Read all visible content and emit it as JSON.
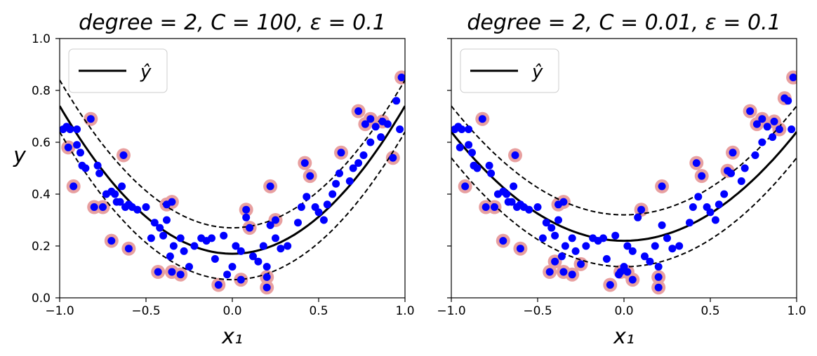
{
  "colors": {
    "points": "#0000ff",
    "support_vectors": "#e8a0a0",
    "prediction_line": "#000000",
    "margin_lines": "#000000",
    "background": "#ffffff"
  },
  "chart_data": [
    {
      "type": "scatter",
      "title": "degree = 2, C = 100, ε = 0.1",
      "xlabel": "x₁",
      "ylabel": "y",
      "xlim": [
        -1.0,
        1.0
      ],
      "ylim": [
        0.0,
        1.0
      ],
      "xticks": [
        "−1.0",
        "−0.5",
        "0.0",
        "0.5",
        "1.0"
      ],
      "yticks": [
        "0.0",
        "0.2",
        "0.4",
        "0.6",
        "0.8",
        "1.0"
      ],
      "legend": {
        "entries": [
          "ŷ"
        ],
        "placement": "upper-left"
      },
      "grid": false,
      "model_curve": {
        "a": 0.57,
        "b": 0.0,
        "c": 0.17,
        "epsilon": 0.1
      },
      "support_vectors": [
        [
          -0.95,
          0.58
        ],
        [
          -0.92,
          0.43
        ],
        [
          -0.8,
          0.35
        ],
        [
          -0.75,
          0.35
        ],
        [
          -0.82,
          0.69
        ],
        [
          -0.7,
          0.22
        ],
        [
          -0.63,
          0.55
        ],
        [
          -0.6,
          0.19
        ],
        [
          -0.43,
          0.1
        ],
        [
          -0.38,
          0.36
        ],
        [
          -0.35,
          0.37
        ],
        [
          -0.35,
          0.1
        ],
        [
          -0.3,
          0.09
        ],
        [
          -0.08,
          0.05
        ],
        [
          0.05,
          0.07
        ],
        [
          0.08,
          0.34
        ],
        [
          0.1,
          0.27
        ],
        [
          0.2,
          0.08
        ],
        [
          0.22,
          0.43
        ],
        [
          0.2,
          0.04
        ],
        [
          0.25,
          0.3
        ],
        [
          0.42,
          0.52
        ],
        [
          0.45,
          0.47
        ],
        [
          0.63,
          0.56
        ],
        [
          0.73,
          0.72
        ],
        [
          0.77,
          0.67
        ],
        [
          0.8,
          0.69
        ],
        [
          0.87,
          0.68
        ],
        [
          0.93,
          0.54
        ],
        [
          0.98,
          0.85
        ]
      ],
      "points": [
        [
          -0.98,
          0.65
        ],
        [
          -0.96,
          0.66
        ],
        [
          -0.94,
          0.65
        ],
        [
          -0.9,
          0.65
        ],
        [
          -0.9,
          0.59
        ],
        [
          -0.88,
          0.56
        ],
        [
          -0.87,
          0.51
        ],
        [
          -0.85,
          0.5
        ],
        [
          -0.78,
          0.51
        ],
        [
          -0.77,
          0.48
        ],
        [
          -0.73,
          0.4
        ],
        [
          -0.7,
          0.41
        ],
        [
          -0.68,
          0.4
        ],
        [
          -0.67,
          0.37
        ],
        [
          -0.65,
          0.37
        ],
        [
          -0.64,
          0.43
        ],
        [
          -0.62,
          0.35
        ],
        [
          -0.6,
          0.36
        ],
        [
          -0.58,
          0.35
        ],
        [
          -0.55,
          0.34
        ],
        [
          -0.5,
          0.35
        ],
        [
          -0.47,
          0.23
        ],
        [
          -0.45,
          0.29
        ],
        [
          -0.42,
          0.27
        ],
        [
          -0.4,
          0.24
        ],
        [
          -0.38,
          0.3
        ],
        [
          -0.36,
          0.16
        ],
        [
          -0.34,
          0.2
        ],
        [
          -0.3,
          0.23
        ],
        [
          -0.28,
          0.18
        ],
        [
          -0.25,
          0.12
        ],
        [
          -0.22,
          0.2
        ],
        [
          -0.18,
          0.23
        ],
        [
          -0.15,
          0.22
        ],
        [
          -0.12,
          0.23
        ],
        [
          -0.1,
          0.15
        ],
        [
          -0.05,
          0.24
        ],
        [
          -0.03,
          0.09
        ],
        [
          0.0,
          0.12
        ],
        [
          0.02,
          0.2
        ],
        [
          0.05,
          0.18
        ],
        [
          0.08,
          0.31
        ],
        [
          0.12,
          0.16
        ],
        [
          0.15,
          0.14
        ],
        [
          0.18,
          0.2
        ],
        [
          0.2,
          0.12
        ],
        [
          0.22,
          0.28
        ],
        [
          0.25,
          0.23
        ],
        [
          0.28,
          0.19
        ],
        [
          0.32,
          0.2
        ],
        [
          0.38,
          0.29
        ],
        [
          0.4,
          0.35
        ],
        [
          0.43,
          0.39
        ],
        [
          0.48,
          0.35
        ],
        [
          0.5,
          0.33
        ],
        [
          0.53,
          0.3
        ],
        [
          0.55,
          0.36
        ],
        [
          0.58,
          0.4
        ],
        [
          0.6,
          0.44
        ],
        [
          0.62,
          0.48
        ],
        [
          0.68,
          0.45
        ],
        [
          0.7,
          0.5
        ],
        [
          0.73,
          0.52
        ],
        [
          0.76,
          0.55
        ],
        [
          0.8,
          0.6
        ],
        [
          0.83,
          0.66
        ],
        [
          0.86,
          0.62
        ],
        [
          0.9,
          0.67
        ],
        [
          0.95,
          0.76
        ],
        [
          0.97,
          0.65
        ]
      ]
    },
    {
      "type": "scatter",
      "title": "degree = 2, C = 0.01, ε = 0.1",
      "xlabel": "x₁",
      "ylabel": "",
      "xlim": [
        -1.0,
        1.0
      ],
      "ylim": [
        0.0,
        1.0
      ],
      "xticks": [
        "−1.0",
        "−0.5",
        "0.0",
        "0.5",
        "1.0"
      ],
      "yticks": [],
      "legend": {
        "entries": [
          "ŷ"
        ],
        "placement": "upper-left"
      },
      "grid": false,
      "model_curve": {
        "a": 0.42,
        "b": 0.0,
        "c": 0.22,
        "epsilon": 0.1
      },
      "support_vectors": [
        [
          -0.92,
          0.43
        ],
        [
          -0.82,
          0.69
        ],
        [
          -0.8,
          0.35
        ],
        [
          -0.75,
          0.35
        ],
        [
          -0.7,
          0.22
        ],
        [
          -0.63,
          0.55
        ],
        [
          -0.6,
          0.19
        ],
        [
          -0.43,
          0.1
        ],
        [
          -0.4,
          0.14
        ],
        [
          -0.38,
          0.36
        ],
        [
          -0.35,
          0.37
        ],
        [
          -0.35,
          0.1
        ],
        [
          -0.3,
          0.09
        ],
        [
          -0.25,
          0.13
        ],
        [
          -0.08,
          0.05
        ],
        [
          -0.02,
          0.1
        ],
        [
          0.02,
          0.1
        ],
        [
          0.05,
          0.07
        ],
        [
          0.1,
          0.34
        ],
        [
          0.2,
          0.08
        ],
        [
          0.2,
          0.04
        ],
        [
          0.22,
          0.43
        ],
        [
          0.42,
          0.52
        ],
        [
          0.45,
          0.47
        ],
        [
          0.6,
          0.49
        ],
        [
          0.63,
          0.56
        ],
        [
          0.73,
          0.72
        ],
        [
          0.77,
          0.67
        ],
        [
          0.8,
          0.69
        ],
        [
          0.87,
          0.68
        ],
        [
          0.9,
          0.65
        ],
        [
          0.93,
          0.77
        ],
        [
          0.98,
          0.85
        ]
      ],
      "points": [
        [
          -0.98,
          0.65
        ],
        [
          -0.96,
          0.66
        ],
        [
          -0.94,
          0.65
        ],
        [
          -0.9,
          0.65
        ],
        [
          -0.95,
          0.58
        ],
        [
          -0.9,
          0.59
        ],
        [
          -0.88,
          0.56
        ],
        [
          -0.87,
          0.51
        ],
        [
          -0.85,
          0.5
        ],
        [
          -0.78,
          0.51
        ],
        [
          -0.77,
          0.48
        ],
        [
          -0.73,
          0.4
        ],
        [
          -0.7,
          0.41
        ],
        [
          -0.68,
          0.4
        ],
        [
          -0.67,
          0.37
        ],
        [
          -0.65,
          0.37
        ],
        [
          -0.64,
          0.43
        ],
        [
          -0.62,
          0.35
        ],
        [
          -0.6,
          0.36
        ],
        [
          -0.58,
          0.35
        ],
        [
          -0.55,
          0.34
        ],
        [
          -0.5,
          0.35
        ],
        [
          -0.47,
          0.23
        ],
        [
          -0.45,
          0.29
        ],
        [
          -0.42,
          0.27
        ],
        [
          -0.4,
          0.24
        ],
        [
          -0.38,
          0.3
        ],
        [
          -0.36,
          0.16
        ],
        [
          -0.34,
          0.2
        ],
        [
          -0.3,
          0.23
        ],
        [
          -0.28,
          0.18
        ],
        [
          -0.22,
          0.2
        ],
        [
          -0.18,
          0.23
        ],
        [
          -0.15,
          0.22
        ],
        [
          -0.12,
          0.23
        ],
        [
          -0.1,
          0.15
        ],
        [
          -0.05,
          0.24
        ],
        [
          -0.03,
          0.09
        ],
        [
          0.0,
          0.12
        ],
        [
          0.02,
          0.2
        ],
        [
          0.05,
          0.18
        ],
        [
          0.08,
          0.31
        ],
        [
          0.12,
          0.16
        ],
        [
          0.15,
          0.14
        ],
        [
          0.18,
          0.2
        ],
        [
          0.2,
          0.12
        ],
        [
          0.22,
          0.28
        ],
        [
          0.25,
          0.23
        ],
        [
          0.28,
          0.19
        ],
        [
          0.32,
          0.2
        ],
        [
          0.38,
          0.29
        ],
        [
          0.4,
          0.35
        ],
        [
          0.43,
          0.39
        ],
        [
          0.48,
          0.35
        ],
        [
          0.5,
          0.33
        ],
        [
          0.53,
          0.3
        ],
        [
          0.55,
          0.36
        ],
        [
          0.58,
          0.4
        ],
        [
          0.62,
          0.48
        ],
        [
          0.68,
          0.45
        ],
        [
          0.7,
          0.5
        ],
        [
          0.76,
          0.55
        ],
        [
          0.8,
          0.6
        ],
        [
          0.83,
          0.66
        ],
        [
          0.86,
          0.62
        ],
        [
          0.95,
          0.76
        ],
        [
          0.97,
          0.65
        ]
      ]
    }
  ]
}
